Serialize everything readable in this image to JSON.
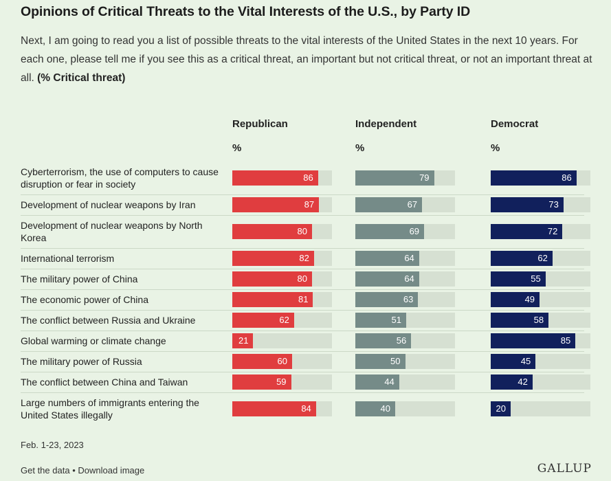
{
  "title": "Opinions of Critical Threats to the Vital Interests of the U.S., by Party ID",
  "subtitle": "Next, I am going to read you a list of possible threats to the vital interests of the United States in the next 10 years. For each one, please tell me if you see this as a critical threat, an important but not critical threat, or not an important threat at all.",
  "subtitle_bold": "(% Critical threat)",
  "footer": {
    "date": "Feb. 1-23, 2023",
    "get_data": "Get the data",
    "separator": "•",
    "download": "Download image",
    "logo": "GALLUP"
  },
  "colors": {
    "Republican": "#e03d3f",
    "Independent": "#758b88",
    "Democrat": "#11205c",
    "track": "#d6e0d2",
    "background": "#e9f3e5"
  },
  "chart_data": {
    "type": "bar",
    "orientation": "horizontal",
    "title": "Opinions of Critical Threats to the Vital Interests of the U.S., by Party ID",
    "unit": "%",
    "xlim": [
      0,
      100
    ],
    "categories": [
      "Cyberterrorism, the use of computers to cause disruption or fear in society",
      "Development of nuclear weapons by Iran",
      "Development of nuclear weapons by North Korea",
      "International terrorism",
      "The military power of China",
      "The economic power of China",
      "The conflict between Russia and Ukraine",
      "Global warming or climate change",
      "The military power of Russia",
      "The conflict between China and Taiwan",
      "Large numbers of immigrants entering the United States illegally"
    ],
    "series": [
      {
        "name": "Republican",
        "unit_label": "%",
        "values": [
          86,
          87,
          80,
          82,
          80,
          81,
          62,
          21,
          60,
          59,
          84
        ]
      },
      {
        "name": "Independent",
        "unit_label": "%",
        "values": [
          79,
          67,
          69,
          64,
          64,
          63,
          51,
          56,
          50,
          44,
          40
        ]
      },
      {
        "name": "Democrat",
        "unit_label": "%",
        "values": [
          86,
          73,
          72,
          62,
          55,
          49,
          58,
          85,
          45,
          42,
          20
        ]
      }
    ]
  }
}
